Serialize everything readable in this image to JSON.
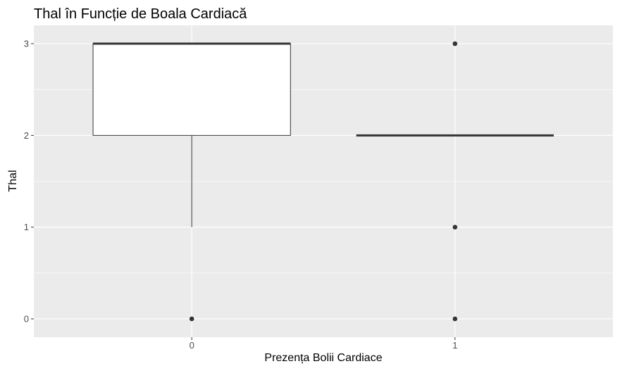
{
  "chart_data": {
    "type": "boxplot",
    "title": "Thal în Funcție de Boala Cardiacă",
    "xlabel": "Prezența Bolii Cardiace",
    "ylabel": "Thal",
    "categories": [
      "0",
      "1"
    ],
    "ylim": [
      -0.2,
      3.2
    ],
    "y_ticks": [
      0,
      1,
      2,
      3
    ],
    "y_tick_labels": [
      "0",
      "1",
      "2",
      "3"
    ],
    "grid": true,
    "boxes": [
      {
        "category": "0",
        "lower_whisker": 1,
        "q1": 2,
        "median": 3,
        "q3": 3,
        "upper_whisker": 3,
        "outliers": [
          0
        ]
      },
      {
        "category": "1",
        "lower_whisker": 2,
        "q1": 2,
        "median": 2,
        "q3": 2,
        "upper_whisker": 2,
        "outliers": [
          0,
          1,
          3
        ]
      }
    ],
    "colors": {
      "panel_background": "#ebebeb",
      "grid": "#ffffff",
      "box_fill": "#ffffff",
      "box_line": "#333333"
    }
  }
}
